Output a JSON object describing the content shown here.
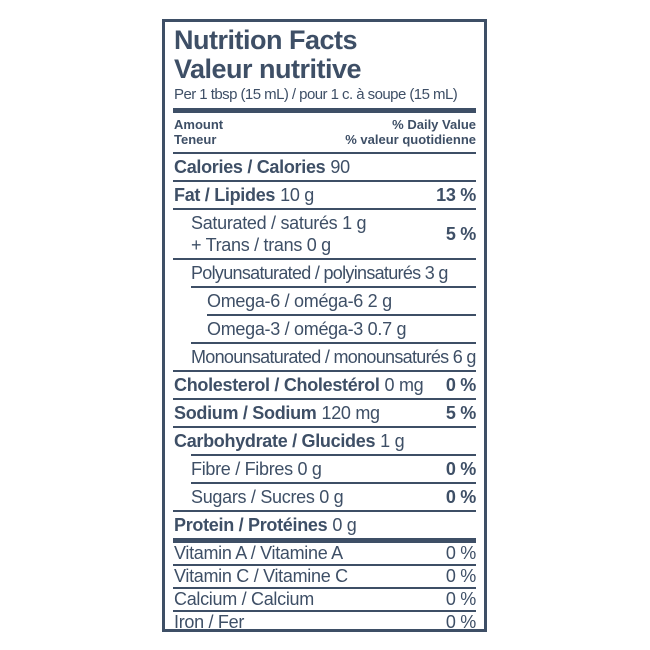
{
  "colors": {
    "ink": "#3e4f66",
    "background": "#ffffff"
  },
  "label": {
    "title_en": "Nutrition Facts",
    "title_fr": "Valeur nutritive",
    "serving_line": "Per 1 tbsp (15 mL) / pour 1 c. à soupe (15 mL)",
    "column_header": {
      "amount_en": "Amount",
      "amount_fr": "Teneur",
      "daily_value_en": "% Daily Value",
      "daily_value_fr": "% valeur quotidienne"
    },
    "rows": {
      "calories": {
        "name": "Calories / Calories",
        "amount": "90"
      },
      "fat": {
        "name": "Fat / Lipides",
        "amount": "10 g",
        "dv": "13 %"
      },
      "saturated_trans": {
        "line1": "Saturated / saturés 1 g",
        "line2": "+ Trans / trans 0 g",
        "dv": "5 %"
      },
      "polyunsaturated": {
        "name": "Polyunsaturated / polyinsaturés 3 g"
      },
      "omega6": {
        "name": "Omega-6 / oméga-6 2 g"
      },
      "omega3": {
        "name": "Omega-3 / oméga-3 0.7 g"
      },
      "monounsaturated": {
        "name": "Monounsaturated / monounsaturés 6 g"
      },
      "cholesterol": {
        "name": "Cholesterol / Cholestérol",
        "amount": "0 mg",
        "dv": "0 %"
      },
      "sodium": {
        "name": "Sodium / Sodium",
        "amount": "120 mg",
        "dv": "5 %"
      },
      "carbohydrate": {
        "name": "Carbohydrate / Glucides",
        "amount": "1 g"
      },
      "fibre": {
        "name": "Fibre / Fibres 0 g",
        "dv": "0 %"
      },
      "sugars": {
        "name": "Sugars / Sucres 0 g",
        "dv": "0 %"
      },
      "protein": {
        "name": "Protein / Protéines",
        "amount": "0 g"
      },
      "vitamin_a": {
        "name": "Vitamin A / Vitamine A",
        "dv": "0 %"
      },
      "vitamin_c": {
        "name": "Vitamin C / Vitamine C",
        "dv": "0 %"
      },
      "calcium": {
        "name": "Calcium / Calcium",
        "dv": "0 %"
      },
      "iron": {
        "name": "Iron / Fer",
        "dv": "0 %"
      }
    }
  }
}
